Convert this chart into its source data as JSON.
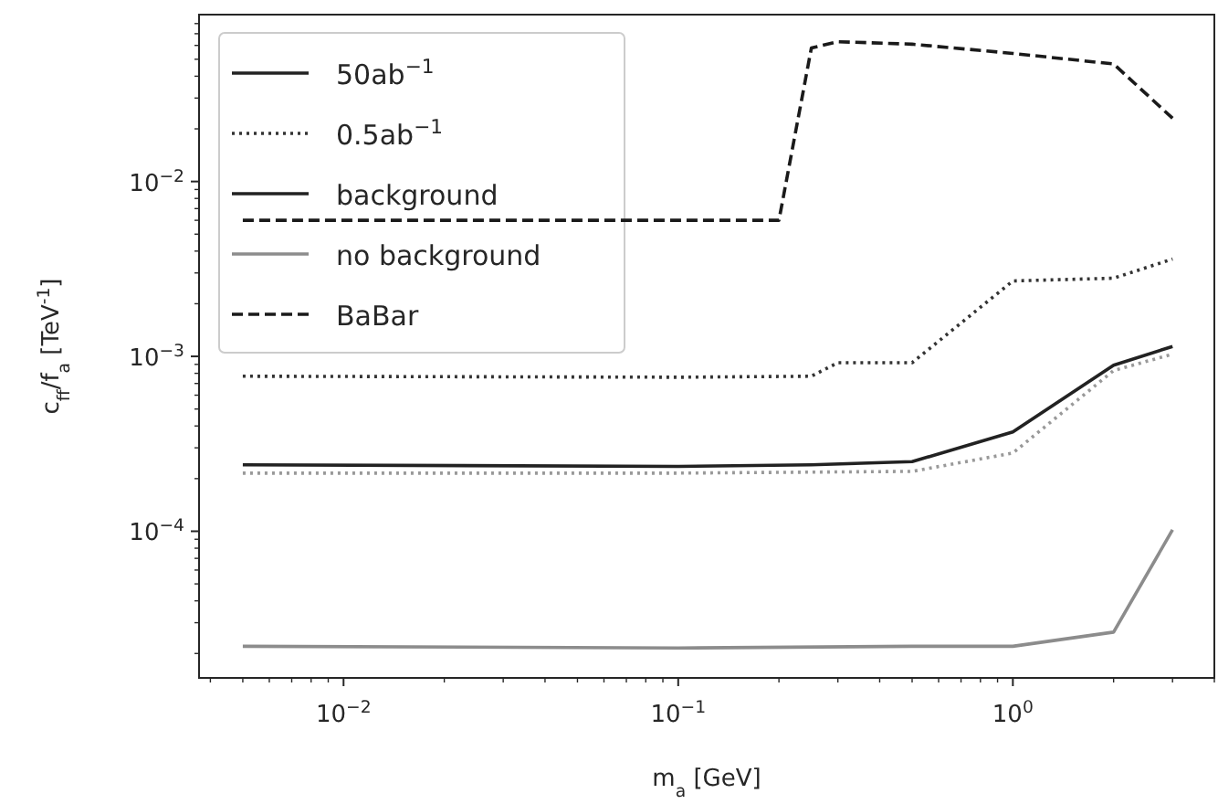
{
  "chart_data": {
    "type": "line",
    "xlabel": "m$_{a}$ [GeV]",
    "ylabel": "c$_{ff}$/f$_{a}$ [TeV$^{-1}$]",
    "log": "xy",
    "legend": "top left",
    "xlim": [
      0.0037,
      4.0
    ],
    "ylim": [
      1.45e-05,
      0.09
    ],
    "xticks": [
      {
        "value": 0.004,
        "label": null
      },
      {
        "value": 0.005,
        "label": null
      },
      {
        "value": 0.006,
        "label": null
      },
      {
        "value": 0.007,
        "label": null
      },
      {
        "value": 0.008,
        "label": null
      },
      {
        "value": 0.009,
        "label": null
      },
      {
        "value": 0.01,
        "label": "10$^{−2}$"
      },
      {
        "value": 0.02,
        "label": null
      },
      {
        "value": 0.03,
        "label": null
      },
      {
        "value": 0.04,
        "label": null
      },
      {
        "value": 0.05,
        "label": null
      },
      {
        "value": 0.06,
        "label": null
      },
      {
        "value": 0.07,
        "label": null
      },
      {
        "value": 0.08,
        "label": null
      },
      {
        "value": 0.09,
        "label": null
      },
      {
        "value": 0.1,
        "label": "10$^{−1}$"
      },
      {
        "value": 0.2,
        "label": null
      },
      {
        "value": 0.3,
        "label": null
      },
      {
        "value": 0.4,
        "label": null
      },
      {
        "value": 0.5,
        "label": null
      },
      {
        "value": 0.6,
        "label": null
      },
      {
        "value": 0.7,
        "label": null
      },
      {
        "value": 0.8,
        "label": null
      },
      {
        "value": 0.9,
        "label": null
      },
      {
        "value": 1,
        "label": "10$^{0}$"
      },
      {
        "value": 2,
        "label": null
      },
      {
        "value": 3,
        "label": null
      },
      {
        "value": 4,
        "label": null
      }
    ],
    "yticks": [
      {
        "value": 2e-05,
        "label": null
      },
      {
        "value": 3e-05,
        "label": null
      },
      {
        "value": 4e-05,
        "label": null
      },
      {
        "value": 5e-05,
        "label": null
      },
      {
        "value": 6e-05,
        "label": null
      },
      {
        "value": 7e-05,
        "label": null
      },
      {
        "value": 8e-05,
        "label": null
      },
      {
        "value": 9e-05,
        "label": null
      },
      {
        "value": 0.0001,
        "label": "10$^{−4}$"
      },
      {
        "value": 0.0002,
        "label": null
      },
      {
        "value": 0.0003,
        "label": null
      },
      {
        "value": 0.0004,
        "label": null
      },
      {
        "value": 0.0005,
        "label": null
      },
      {
        "value": 0.0006,
        "label": null
      },
      {
        "value": 0.0007,
        "label": null
      },
      {
        "value": 0.0008,
        "label": null
      },
      {
        "value": 0.0009,
        "label": null
      },
      {
        "value": 0.001,
        "label": "10$^{−3}$"
      },
      {
        "value": 0.002,
        "label": null
      },
      {
        "value": 0.003,
        "label": null
      },
      {
        "value": 0.004,
        "label": null
      },
      {
        "value": 0.005,
        "label": null
      },
      {
        "value": 0.006,
        "label": null
      },
      {
        "value": 0.007,
        "label": null
      },
      {
        "value": 0.008,
        "label": null
      },
      {
        "value": 0.009,
        "label": null
      },
      {
        "value": 0.01,
        "label": "10$^{−2}$"
      },
      {
        "value": 0.02,
        "label": null
      },
      {
        "value": 0.03,
        "label": null
      },
      {
        "value": 0.04,
        "label": null
      },
      {
        "value": 0.05,
        "label": null
      },
      {
        "value": 0.06,
        "label": null
      },
      {
        "value": 0.07,
        "label": null
      },
      {
        "value": 0.08,
        "label": null
      }
    ],
    "annotations": [
      "background"
    ],
    "series": [
      {
        "name": "50ab$^{−1}$",
        "color": "#222222",
        "line_style": "solid",
        "x": [
          0.005,
          0.1,
          0.25,
          0.5,
          1,
          2,
          3
        ],
        "values": [
          0.00024,
          0.000235,
          0.00024,
          0.00025,
          0.00037,
          0.00089,
          0.00114
        ]
      },
      {
        "name": "0.5ab$^{−1}$",
        "color": "#333333",
        "line_style": "dotted",
        "x": [
          0.005,
          0.1,
          0.25,
          0.3,
          0.5,
          1,
          2,
          3
        ],
        "values": [
          0.00077,
          0.00076,
          0.00077,
          0.00092,
          0.00092,
          0.0027,
          0.0028,
          0.0036
        ]
      },
      {
        "name": "no background",
        "color": "#8c8c8c",
        "line_style": "solid",
        "x": [
          0.005,
          0.1,
          0.5,
          1,
          2,
          3
        ],
        "values": [
          2.2e-05,
          2.15e-05,
          2.2e-05,
          2.2e-05,
          2.65e-05,
          0.000102
        ]
      },
      {
        "color": "#999999",
        "line_style": "dotted",
        "x": [
          0.005,
          0.1,
          0.5,
          1,
          2,
          3
        ],
        "values": [
          0.000215,
          0.000215,
          0.00022,
          0.00028,
          0.00083,
          0.00103
        ]
      },
      {
        "name": "BaBar",
        "color": "#1a1a1a",
        "line_style": "dashed",
        "x": [
          0.005,
          0.2,
          0.25,
          0.3,
          0.5,
          1,
          2,
          3
        ],
        "values": [
          0.006,
          0.006,
          0.058,
          0.063,
          0.061,
          0.054,
          0.047,
          0.023
        ]
      }
    ]
  }
}
